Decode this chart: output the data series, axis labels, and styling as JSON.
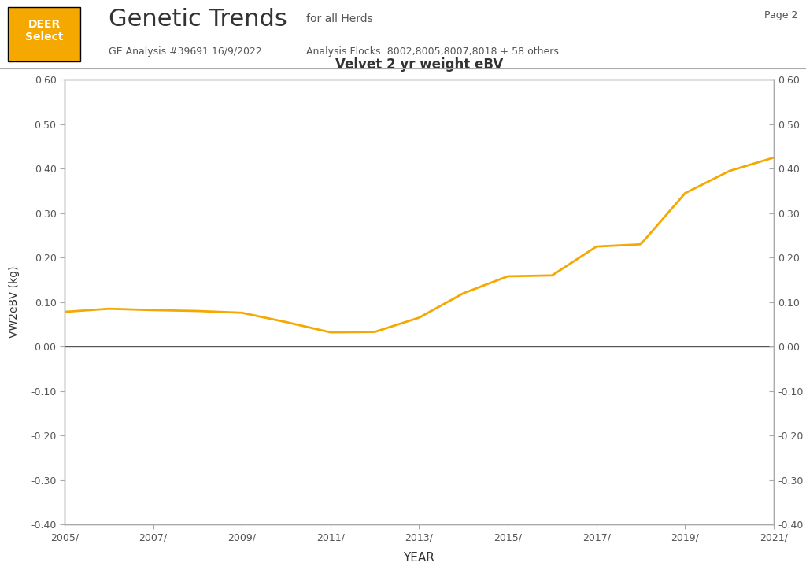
{
  "title": "Velvet 2 yr weight eBV",
  "xlabel": "YEAR",
  "ylabel": "VW2eBV (kg)",
  "header_title": "Genetic Trends",
  "header_subtitle1": "for all Herds",
  "header_subtitle2": "GE Analysis #39691 16/9/2022",
  "header_subtitle3": "Analysis Flocks: 8002,8005,8007,8018 + 58 others",
  "page_label": "Page 2",
  "deer_select_label": "DEER\nSelect",
  "deer_select_bg": "#F5A800",
  "line_color": "#F5A800",
  "line_width": 2.0,
  "ylim": [
    -0.4,
    0.6
  ],
  "yticks": [
    -0.4,
    -0.3,
    -0.2,
    -0.1,
    0.0,
    0.1,
    0.2,
    0.3,
    0.4,
    0.5,
    0.6
  ],
  "xlim": [
    2005,
    2021
  ],
  "xticks": [
    2005,
    2007,
    2009,
    2011,
    2013,
    2015,
    2017,
    2019,
    2021
  ],
  "background_color": "#FFFFFF",
  "plot_bg_color": "#FFFFFF",
  "border_color": "#AAAAAA",
  "zero_line_color": "#555555",
  "years": [
    2005,
    2006,
    2007,
    2008,
    2009,
    2010,
    2011,
    2012,
    2013,
    2014,
    2015,
    2016,
    2017,
    2018,
    2019,
    2020,
    2021
  ],
  "values": [
    0.078,
    0.085,
    0.082,
    0.08,
    0.076,
    0.055,
    0.032,
    0.033,
    0.065,
    0.12,
    0.158,
    0.16,
    0.225,
    0.23,
    0.345,
    0.395,
    0.425
  ]
}
